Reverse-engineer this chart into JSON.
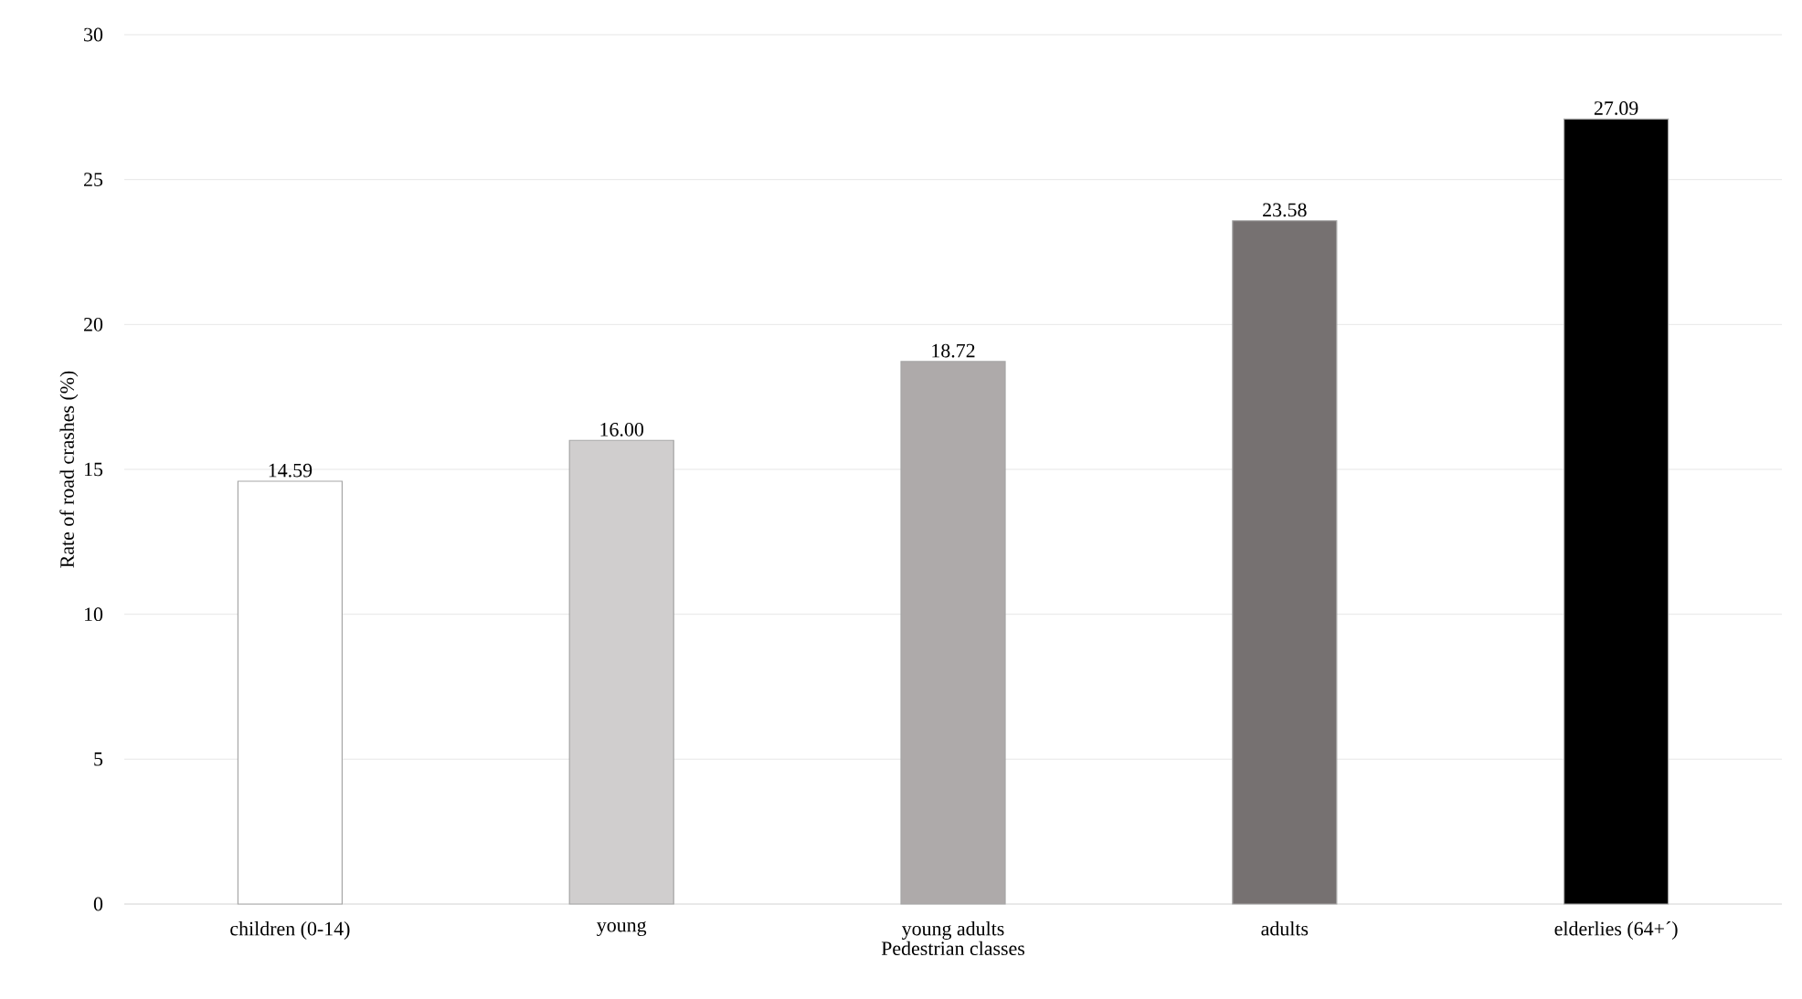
{
  "chart_data": {
    "type": "bar",
    "xlabel": "Pedestrian classes",
    "ylabel": "Rate of road crashes (%)",
    "categories": [
      "children (0-14)",
      "young",
      "young adults",
      "adults",
      "elderlies (64+´)"
    ],
    "values": [
      14.59,
      16.0,
      18.72,
      23.58,
      27.09
    ],
    "value_labels": [
      "14.59",
      "16.00",
      "18.72",
      "23.58",
      "27.09"
    ],
    "colors": [
      "#ffffff",
      "#d0cece",
      "#aeaaaa",
      "#767171",
      "#000000"
    ],
    "ylim": [
      0,
      30
    ],
    "yticks": [
      0,
      5,
      10,
      15,
      20,
      25,
      30
    ],
    "grid": "y"
  }
}
